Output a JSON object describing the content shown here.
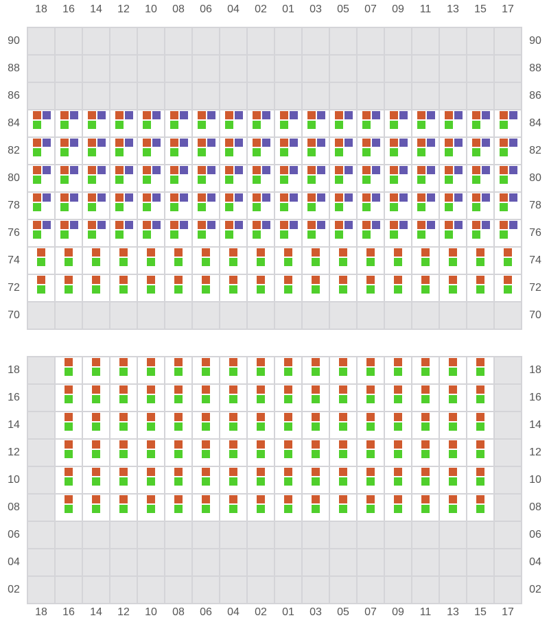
{
  "columns": [
    "18",
    "16",
    "14",
    "12",
    "10",
    "08",
    "06",
    "04",
    "02",
    "01",
    "03",
    "05",
    "07",
    "09",
    "11",
    "13",
    "15",
    "17"
  ],
  "colors": {
    "orange": "#d05a2e",
    "purple": "#6459b0",
    "green": "#50cf2c",
    "empty_cell": "#e4e4e6",
    "occupied_cell": "#ffffff",
    "grid_line": "#d4d4d8"
  },
  "legend_codes": {
    "O": "orange",
    "P": "purple",
    "G": "green"
  },
  "sections": [
    {
      "name": "above-deck",
      "rows": [
        {
          "label": "90",
          "cells": [
            "",
            "",
            "",
            "",
            "",
            "",
            "",
            "",
            "",
            "",
            "",
            "",
            "",
            "",
            "",
            "",
            "",
            ""
          ]
        },
        {
          "label": "88",
          "cells": [
            "",
            "",
            "",
            "",
            "",
            "",
            "",
            "",
            "",
            "",
            "",
            "",
            "",
            "",
            "",
            "",
            "",
            ""
          ]
        },
        {
          "label": "86",
          "cells": [
            "",
            "",
            "",
            "",
            "",
            "",
            "",
            "",
            "",
            "",
            "",
            "",
            "",
            "",
            "",
            "",
            "",
            ""
          ]
        },
        {
          "label": "84",
          "cells": [
            "OPG",
            "OPG",
            "OPG",
            "OPG",
            "OPG",
            "OPG",
            "OPG",
            "OPG",
            "OPG",
            "OPG",
            "OPG",
            "OPG",
            "OPG",
            "OPG",
            "OPG",
            "OPG",
            "OPG",
            "OPG"
          ]
        },
        {
          "label": "82",
          "cells": [
            "OPG",
            "OPG",
            "OPG",
            "OPG",
            "OPG",
            "OPG",
            "OPG",
            "OPG",
            "OPG",
            "OPG",
            "OPG",
            "OPG",
            "OPG",
            "OPG",
            "OPG",
            "OPG",
            "OPG",
            "OPG"
          ]
        },
        {
          "label": "80",
          "cells": [
            "OPG",
            "OPG",
            "OPG",
            "OPG",
            "OPG",
            "OPG",
            "OPG",
            "OPG",
            "OPG",
            "OPG",
            "OPG",
            "OPG",
            "OPG",
            "OPG",
            "OPG",
            "OPG",
            "OPG",
            "OPG"
          ]
        },
        {
          "label": "78",
          "cells": [
            "OPG",
            "OPG",
            "OPG",
            "OPG",
            "OPG",
            "OPG",
            "OPG",
            "OPG",
            "OPG",
            "OPG",
            "OPG",
            "OPG",
            "OPG",
            "OPG",
            "OPG",
            "OPG",
            "OPG",
            "OPG"
          ]
        },
        {
          "label": "76",
          "cells": [
            "OPG",
            "OPG",
            "OPG",
            "OPG",
            "OPG",
            "OPG",
            "OPG",
            "OPG",
            "OPG",
            "OPG",
            "OPG",
            "OPG",
            "OPG",
            "OPG",
            "OPG",
            "OPG",
            "OPG",
            "OPG"
          ]
        },
        {
          "label": "74",
          "cells": [
            "OG",
            "OG",
            "OG",
            "OG",
            "OG",
            "OG",
            "OG",
            "OG",
            "OG",
            "OG",
            "OG",
            "OG",
            "OG",
            "OG",
            "OG",
            "OG",
            "OG",
            "OG"
          ]
        },
        {
          "label": "72",
          "cells": [
            "OG",
            "OG",
            "OG",
            "OG",
            "OG",
            "OG",
            "OG",
            "OG",
            "OG",
            "OG",
            "OG",
            "OG",
            "OG",
            "OG",
            "OG",
            "OG",
            "OG",
            "OG"
          ]
        },
        {
          "label": "70",
          "cells": [
            "",
            "",
            "",
            "",
            "",
            "",
            "",
            "",
            "",
            "",
            "",
            "",
            "",
            "",
            "",
            "",
            "",
            ""
          ]
        }
      ]
    },
    {
      "name": "below-deck",
      "rows": [
        {
          "label": "18",
          "cells": [
            "",
            "OG",
            "OG",
            "OG",
            "OG",
            "OG",
            "OG",
            "OG",
            "OG",
            "OG",
            "OG",
            "OG",
            "OG",
            "OG",
            "OG",
            "OG",
            "OG",
            ""
          ]
        },
        {
          "label": "16",
          "cells": [
            "",
            "OG",
            "OG",
            "OG",
            "OG",
            "OG",
            "OG",
            "OG",
            "OG",
            "OG",
            "OG",
            "OG",
            "OG",
            "OG",
            "OG",
            "OG",
            "OG",
            ""
          ]
        },
        {
          "label": "14",
          "cells": [
            "",
            "OG",
            "OG",
            "OG",
            "OG",
            "OG",
            "OG",
            "OG",
            "OG",
            "OG",
            "OG",
            "OG",
            "OG",
            "OG",
            "OG",
            "OG",
            "OG",
            ""
          ]
        },
        {
          "label": "12",
          "cells": [
            "",
            "OG",
            "OG",
            "OG",
            "OG",
            "OG",
            "OG",
            "OG",
            "OG",
            "OG",
            "OG",
            "OG",
            "OG",
            "OG",
            "OG",
            "OG",
            "OG",
            ""
          ]
        },
        {
          "label": "10",
          "cells": [
            "",
            "OG",
            "OG",
            "OG",
            "OG",
            "OG",
            "OG",
            "OG",
            "OG",
            "OG",
            "OG",
            "OG",
            "OG",
            "OG",
            "OG",
            "OG",
            "OG",
            ""
          ]
        },
        {
          "label": "08",
          "cells": [
            "",
            "OG",
            "OG",
            "OG",
            "OG",
            "OG",
            "OG",
            "OG",
            "OG",
            "OG",
            "OG",
            "OG",
            "OG",
            "OG",
            "OG",
            "OG",
            "OG",
            ""
          ]
        },
        {
          "label": "06",
          "cells": [
            "",
            "",
            "",
            "",
            "",
            "",
            "",
            "",
            "",
            "",
            "",
            "",
            "",
            "",
            "",
            "",
            "",
            ""
          ]
        },
        {
          "label": "04",
          "cells": [
            "",
            "",
            "",
            "",
            "",
            "",
            "",
            "",
            "",
            "",
            "",
            "",
            "",
            "",
            "",
            "",
            "",
            ""
          ]
        },
        {
          "label": "02",
          "cells": [
            "",
            "",
            "",
            "",
            "",
            "",
            "",
            "",
            "",
            "",
            "",
            "",
            "",
            "",
            "",
            "",
            "",
            ""
          ]
        }
      ]
    }
  ]
}
